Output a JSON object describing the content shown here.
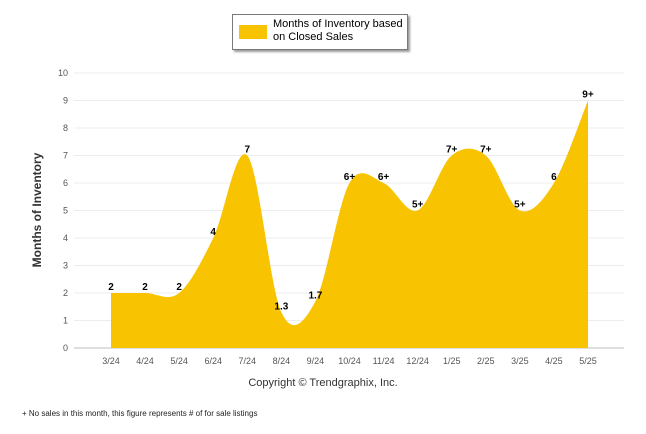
{
  "chart_data": {
    "type": "area",
    "categories": [
      "3/24",
      "4/24",
      "5/24",
      "6/24",
      "7/24",
      "8/24",
      "9/24",
      "10/24",
      "11/24",
      "12/24",
      "1/25",
      "2/25",
      "3/25",
      "4/25",
      "5/25"
    ],
    "series": [
      {
        "name": "Months of Inventory based on Closed Sales",
        "values": [
          2,
          2,
          2,
          4,
          7,
          1.3,
          1.7,
          6,
          6,
          5,
          7,
          7,
          5,
          6,
          9
        ],
        "labels": [
          "2",
          "2",
          "2",
          "4",
          "7",
          "1.3",
          "1.7",
          "6+",
          "6+",
          "5+",
          "7+",
          "7+",
          "5+",
          "6",
          "9+"
        ],
        "color": "#F8C300"
      }
    ],
    "ylabel": "Months of Inventory",
    "ylim": [
      0,
      10
    ],
    "yticks": [
      "0",
      "1",
      "2",
      "3",
      "4",
      "5",
      "6",
      "7",
      "8",
      "9",
      "10"
    ],
    "grid": true,
    "legend_position": "top"
  },
  "legend": {
    "label_line1": "Months of Inventory based",
    "label_line2": "on Closed Sales"
  },
  "copyright": "Copyright © Trendgraphix, Inc.",
  "footnote": "+ No sales in this month, this figure represents # of for sale listings"
}
